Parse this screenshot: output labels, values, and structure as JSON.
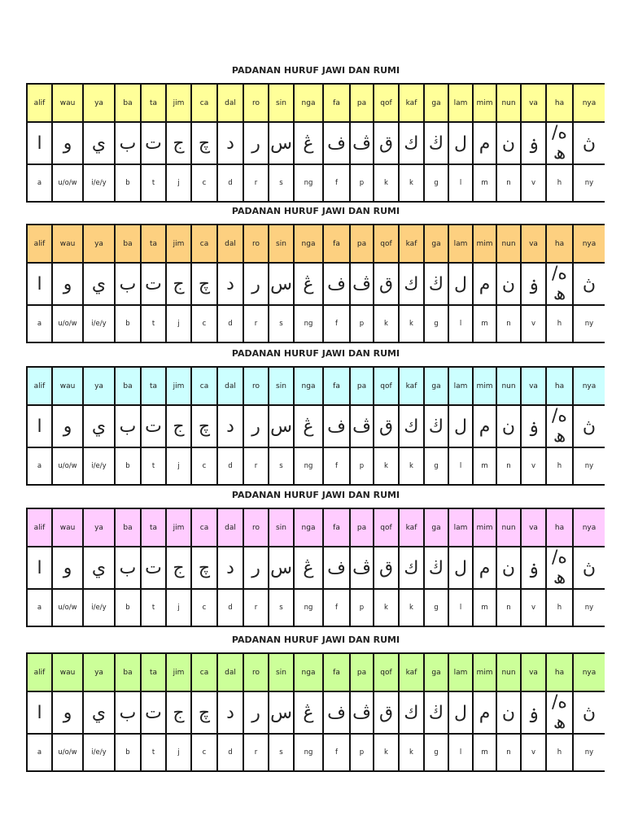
{
  "letters": [
    {
      "name": "alif",
      "jawi": "ا",
      "rumi": "a"
    },
    {
      "name": "wau",
      "jawi": "و",
      "rumi": "u/o/w"
    },
    {
      "name": "ya",
      "jawi": "ي",
      "rumi": "i/e/y"
    },
    {
      "name": "ba",
      "jawi": "ب",
      "rumi": "b"
    },
    {
      "name": "ta",
      "jawi": "ت",
      "rumi": "t"
    },
    {
      "name": "jim",
      "jawi": "ج",
      "rumi": "j"
    },
    {
      "name": "ca",
      "jawi": "چ",
      "rumi": "c"
    },
    {
      "name": "dal",
      "jawi": "د",
      "rumi": "d"
    },
    {
      "name": "ro",
      "jawi": "ر",
      "rumi": "r"
    },
    {
      "name": "sin",
      "jawi": "س",
      "rumi": "s"
    },
    {
      "name": "nga",
      "jawi": "ڠ",
      "rumi": "ng"
    },
    {
      "name": "fa",
      "jawi": "ف",
      "rumi": "f"
    },
    {
      "name": "pa",
      "jawi": "ڤ",
      "rumi": "p"
    },
    {
      "name": "qof",
      "jawi": "ق",
      "rumi": "k"
    },
    {
      "name": "kaf",
      "jawi": "ك",
      "rumi": "k"
    },
    {
      "name": "ga",
      "jawi": "ڬ",
      "rumi": "g"
    },
    {
      "name": "lam",
      "jawi": "ل",
      "rumi": "l"
    },
    {
      "name": "mim",
      "jawi": "م",
      "rumi": "m"
    },
    {
      "name": "nun",
      "jawi": "ن",
      "rumi": "n"
    },
    {
      "name": "va",
      "jawi": "ۏ",
      "rumi": "v"
    },
    {
      "name": "ha",
      "jawi": "ه/ھ",
      "rumi": "h"
    },
    {
      "name": "nya",
      "jawi": "ڽ",
      "rumi": "ny"
    }
  ],
  "tables": [
    {
      "title": "PADANAN HURUF JAWI DAN RUMI",
      "header_color": "#ffff99"
    },
    {
      "title": "PADANAN HURUF JAWI DAN RUMI",
      "header_color": "#fdd080"
    },
    {
      "title": "PADANAN HURUF JAWI DAN RUMI",
      "header_color": "#ccffff"
    },
    {
      "title": "PADANAN HURUF JAWI DAN RUMI",
      "header_color": "#ffccff"
    },
    {
      "title": "PADANAN HURUF JAWI DAN RUMI",
      "header_color": "#ccff99"
    }
  ]
}
